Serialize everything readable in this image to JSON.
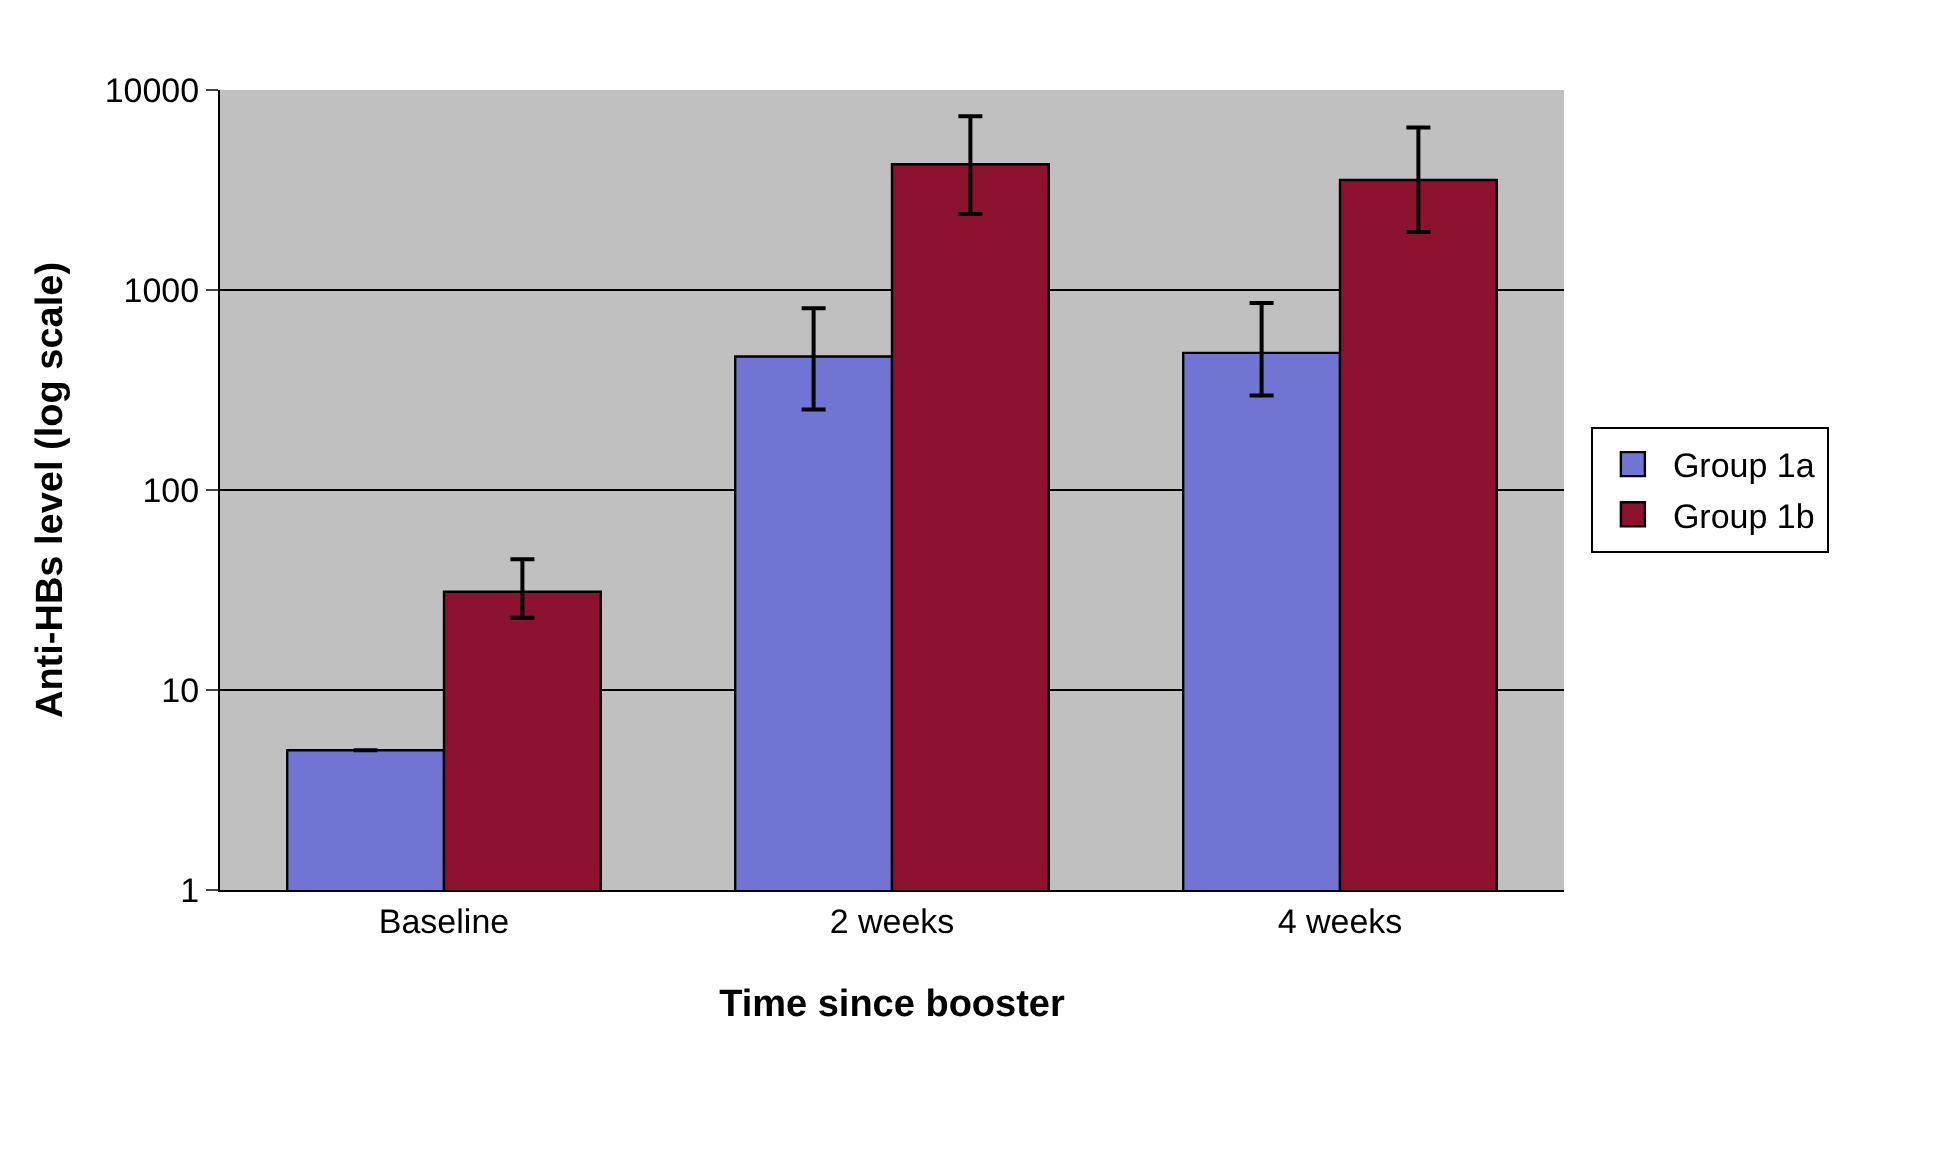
{
  "chart_data": {
    "type": "bar",
    "xlabel": "Time since booster",
    "ylabel": "Anti-HBs level (log scale)",
    "categories": [
      "Baseline",
      "2 weeks",
      "4 weeks"
    ],
    "series": [
      {
        "name": "Group 1a",
        "color": "#7274d4",
        "values": [
          5,
          465,
          485
        ],
        "errors": [
          null,
          [
            253,
            810
          ],
          [
            297,
            860
          ]
        ]
      },
      {
        "name": "Group 1b",
        "color": "#8c1230",
        "values": [
          31,
          4250,
          3550
        ],
        "errors": [
          [
            23,
            45
          ],
          [
            2400,
            7400
          ],
          [
            1950,
            6500
          ]
        ]
      }
    ],
    "log": "y",
    "ylim": [
      1,
      10000
    ],
    "yticks": [
      1,
      10,
      100,
      1000,
      10000
    ],
    "grid": "y",
    "legend": "right"
  }
}
